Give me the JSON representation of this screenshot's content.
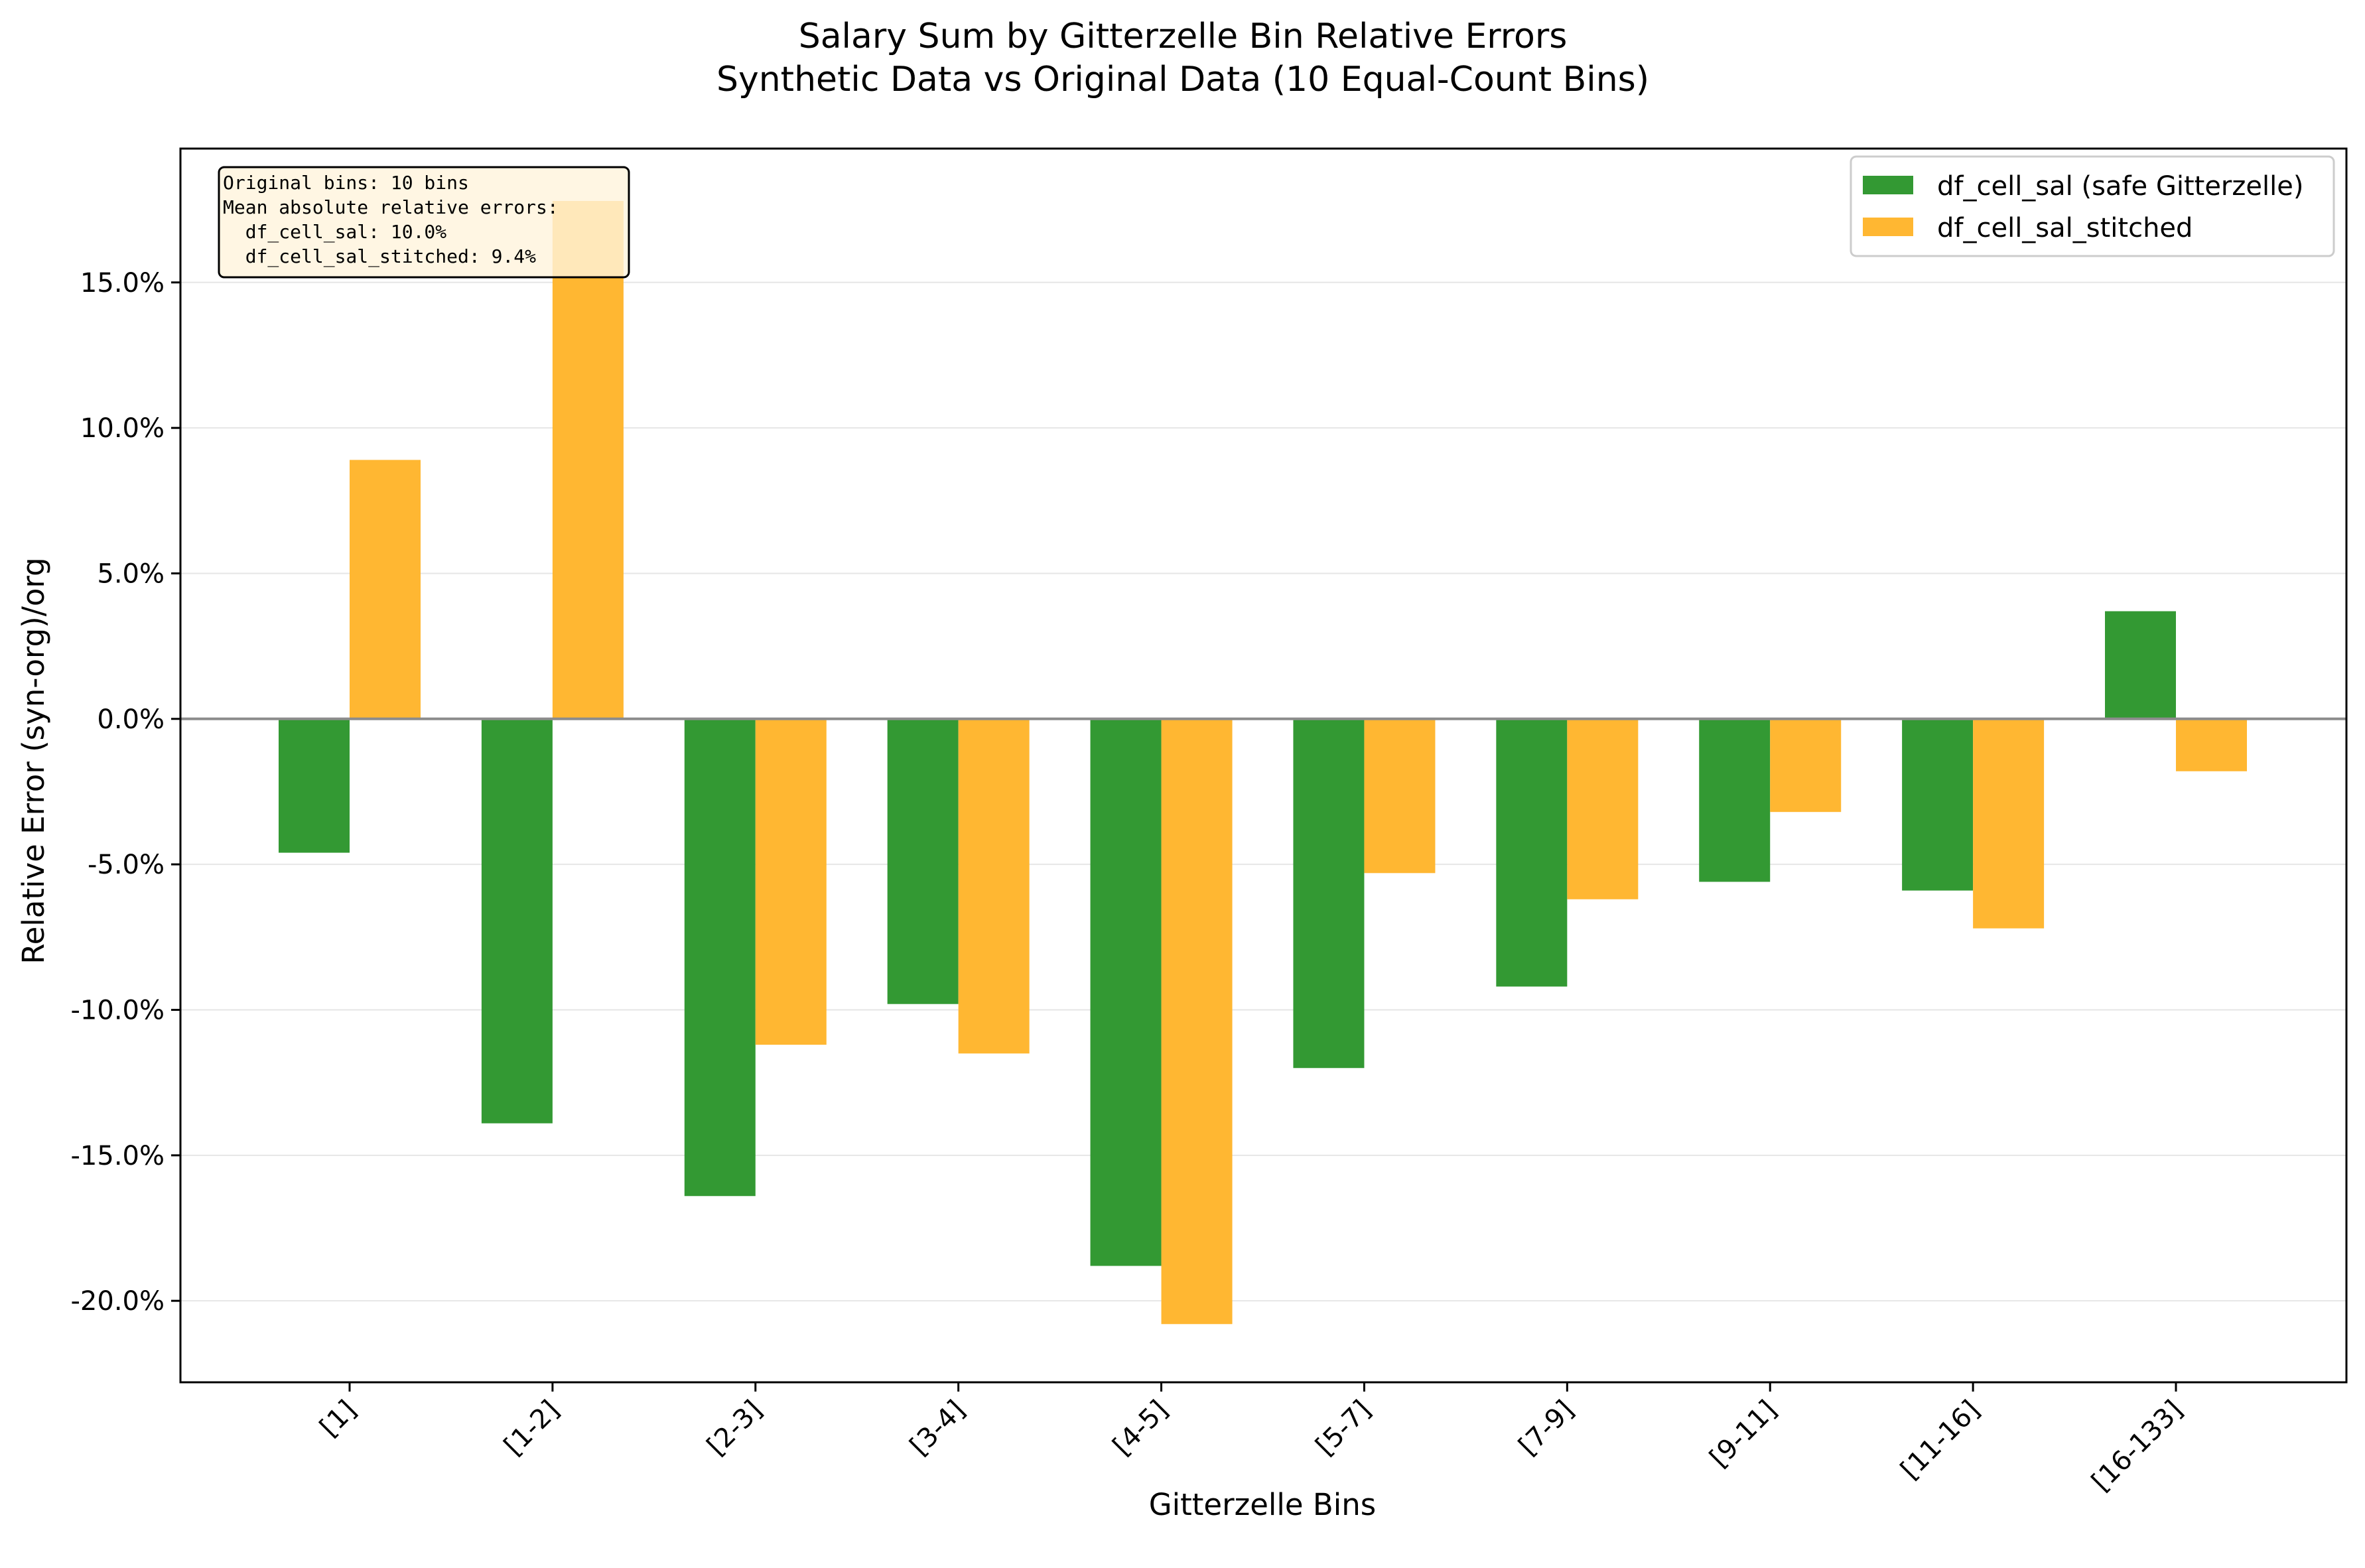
{
  "chart_data": {
    "type": "bar",
    "title_lines": [
      "Salary Sum by Gitterzelle Bin Relative Errors",
      "Synthetic Data vs Original Data (10 Equal-Count Bins)"
    ],
    "xlabel": "Gitterzelle Bins",
    "ylabel": "Relative Error (syn-org)/org",
    "categories": [
      "[1]",
      "[1-2]",
      "[2-3]",
      "[3-4]",
      "[4-5]",
      "[5-7]",
      "[7-9]",
      "[9-11]",
      "[11-16]",
      "[16-133]"
    ],
    "series": [
      {
        "name": "df_cell_sal (safe Gitterzelle)",
        "color": "#339933",
        "values": [
          -4.6,
          -13.9,
          -16.4,
          -9.8,
          -18.8,
          -12.0,
          -9.2,
          -5.6,
          -5.9,
          3.7
        ]
      },
      {
        "name": "df_cell_sal_stitched",
        "color": "#ffb732",
        "values": [
          8.9,
          17.8,
          -11.2,
          -11.5,
          -20.8,
          -5.3,
          -6.2,
          -3.2,
          -7.2,
          -1.8
        ]
      }
    ],
    "ylim": [
      -22.8,
      19.6
    ],
    "yticks": [
      -20,
      -15,
      -10,
      -5,
      0,
      5,
      10,
      15
    ],
    "ytick_labels": [
      "-20.0%",
      "-15.0%",
      "-10.0%",
      "-5.0%",
      "0.0%",
      "5.0%",
      "10.0%",
      "15.0%"
    ],
    "grid": "horizontal",
    "legend_position": "top-right",
    "info_box": [
      "Original bins: 10 bins",
      "Mean absolute relative errors:",
      "  df_cell_sal: 10.0%",
      "  df_cell_sal_stitched: 9.4%"
    ]
  }
}
